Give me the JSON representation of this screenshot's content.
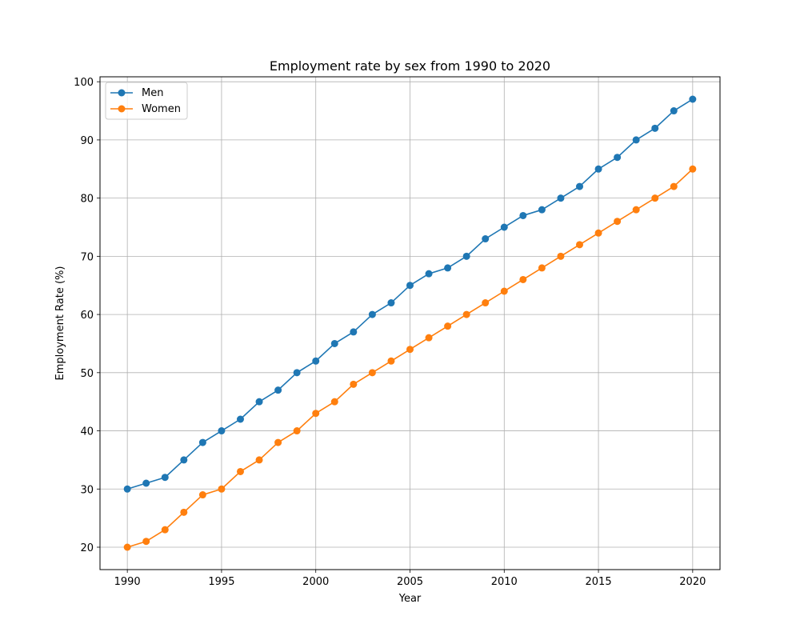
{
  "chart_data": {
    "type": "line",
    "title": "Employment rate by sex from 1990 to 2020",
    "xlabel": "Year",
    "ylabel": "Employment Rate (%)",
    "xlim": [
      1988.55,
      2021.45
    ],
    "ylim": [
      16.15,
      100.85
    ],
    "xticks": [
      1990,
      1995,
      2000,
      2005,
      2010,
      2015,
      2020
    ],
    "yticks": [
      20,
      30,
      40,
      50,
      60,
      70,
      80,
      90,
      100
    ],
    "grid": true,
    "legend_position": "top-left",
    "x": [
      1990,
      1991,
      1992,
      1993,
      1994,
      1995,
      1996,
      1997,
      1998,
      1999,
      2000,
      2001,
      2002,
      2003,
      2004,
      2005,
      2006,
      2007,
      2008,
      2009,
      2010,
      2011,
      2012,
      2013,
      2014,
      2015,
      2016,
      2017,
      2018,
      2019,
      2020
    ],
    "series": [
      {
        "name": "Men",
        "color": "#1f77b4",
        "values": [
          30,
          31,
          32,
          35,
          38,
          40,
          42,
          45,
          47,
          50,
          52,
          55,
          57,
          60,
          62,
          65,
          67,
          68,
          70,
          73,
          75,
          77,
          78,
          80,
          82,
          85,
          87,
          90,
          92,
          95,
          97
        ]
      },
      {
        "name": "Women",
        "color": "#ff7f0e",
        "values": [
          20,
          21,
          23,
          26,
          29,
          30,
          33,
          35,
          38,
          40,
          43,
          45,
          48,
          50,
          52,
          54,
          56,
          58,
          60,
          62,
          64,
          66,
          68,
          70,
          72,
          74,
          76,
          78,
          80,
          82,
          85
        ]
      }
    ]
  }
}
